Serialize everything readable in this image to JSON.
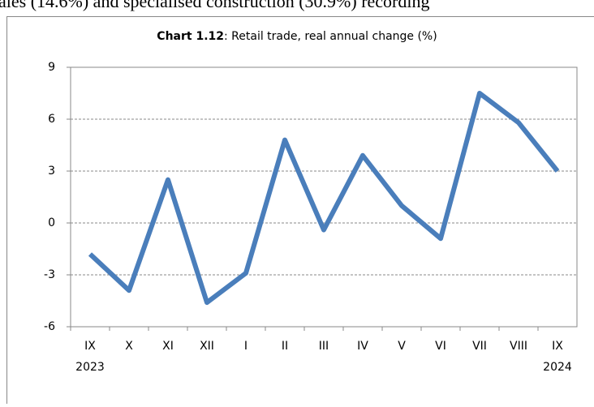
{
  "document_text": "ales (14.6%) and specialised construction (30.9%) recording",
  "chart_data": {
    "type": "line",
    "title_label": "Chart 1.12",
    "title": ": Retail trade, real annual change (%)",
    "categories": [
      "IX",
      "X",
      "XI",
      "XII",
      "I",
      "II",
      "III",
      "IV",
      "V",
      "VI",
      "VII",
      "VIII",
      "IX"
    ],
    "years": [
      "2023",
      null,
      null,
      null,
      null,
      null,
      null,
      null,
      null,
      null,
      null,
      null,
      "2024"
    ],
    "values": [
      -1.8,
      -3.9,
      2.5,
      -4.6,
      -2.9,
      4.8,
      -0.4,
      3.9,
      1.0,
      -0.9,
      7.5,
      5.8,
      3.0
    ],
    "color": "#4a7ebb",
    "ylim": [
      -6,
      9
    ],
    "yticks": [
      -6,
      -3,
      0,
      3,
      6,
      9
    ],
    "grid": true
  }
}
